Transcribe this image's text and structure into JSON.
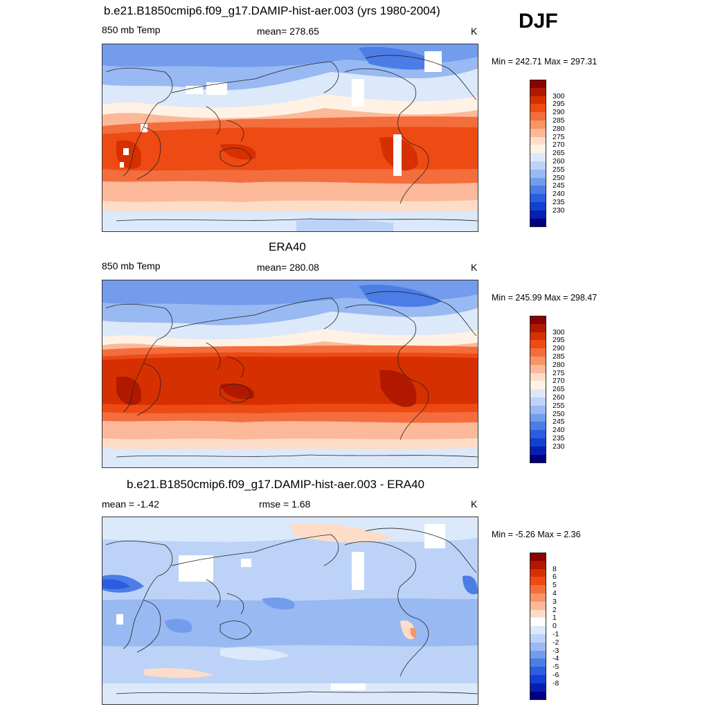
{
  "season": "DJF",
  "panels": [
    {
      "title": "b.e21.B1850cmip6.f09_g17.DAMIP-hist-aer.003 (yrs 1980-2004)",
      "left_label": "850 mb Temp",
      "center_label": "mean= 278.65",
      "right_label": "K",
      "minmax": "Min = 242.71 Max = 297.31",
      "colorbar": {
        "colors": [
          "#8b0000",
          "#b01800",
          "#d73000",
          "#ee4a14",
          "#f46d3c",
          "#f89466",
          "#fbb999",
          "#fdddc8",
          "#fff2e4",
          "#dce9fb",
          "#bcd3f7",
          "#98b9f2",
          "#739cec",
          "#4c7de6",
          "#2a5de0",
          "#1240d2",
          "#0520b0",
          "#000080"
        ],
        "labels": [
          "300",
          "295",
          "290",
          "285",
          "280",
          "275",
          "270",
          "265",
          "260",
          "255",
          "250",
          "245",
          "240",
          "235",
          "230"
        ]
      }
    },
    {
      "title": "ERA40",
      "left_label": "850 mb Temp",
      "center_label": "mean= 280.08",
      "right_label": "K",
      "minmax": "Min = 245.99 Max = 298.47",
      "colorbar": {
        "colors": [
          "#8b0000",
          "#b01800",
          "#d73000",
          "#ee4a14",
          "#f46d3c",
          "#f89466",
          "#fbb999",
          "#fdddc8",
          "#fff2e4",
          "#dce9fb",
          "#bcd3f7",
          "#98b9f2",
          "#739cec",
          "#4c7de6",
          "#2a5de0",
          "#1240d2",
          "#0520b0",
          "#000080"
        ],
        "labels": [
          "300",
          "295",
          "290",
          "285",
          "280",
          "275",
          "270",
          "265",
          "260",
          "255",
          "250",
          "245",
          "240",
          "235",
          "230"
        ]
      }
    },
    {
      "title": "b.e21.B1850cmip6.f09_g17.DAMIP-hist-aer.003 - ERA40",
      "left_label": "mean =  -1.42",
      "center_label": "rmse =   1.68",
      "right_label": "K",
      "minmax": "Min =  -5.26 Max =   2.36",
      "colorbar": {
        "colors": [
          "#8b0000",
          "#b01800",
          "#d73000",
          "#ee4a14",
          "#f46d3c",
          "#f89466",
          "#fbb999",
          "#fdddc8",
          "#ffffff",
          "#dce9fb",
          "#bcd3f7",
          "#98b9f2",
          "#739cec",
          "#4c7de6",
          "#2a5de0",
          "#1240d2",
          "#0520b0",
          "#000080"
        ],
        "labels": [
          "8",
          "6",
          "5",
          "4",
          "3",
          "2",
          "1",
          "0",
          "-1",
          "-2",
          "-3",
          "-4",
          "-5",
          "-6",
          "-8"
        ]
      }
    }
  ]
}
